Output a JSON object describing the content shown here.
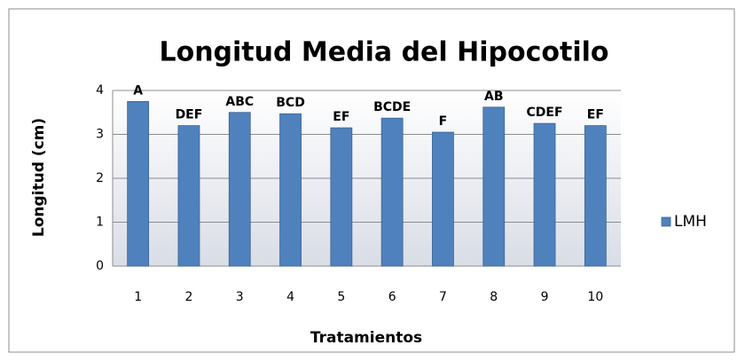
{
  "chart_data": {
    "type": "bar",
    "title": "Longitud Media del Hipocotilo",
    "y_label": "Longitud (cm)",
    "x_label": "Tratamientos",
    "categories": [
      "1",
      "2",
      "3",
      "4",
      "5",
      "6",
      "7",
      "8",
      "9",
      "10"
    ],
    "series": [
      {
        "name": "LMH",
        "color": "#4f81bd",
        "values": [
          3.75,
          3.2,
          3.5,
          3.47,
          3.15,
          3.37,
          3.05,
          3.62,
          3.25,
          3.2
        ]
      }
    ],
    "annotations": [
      "A",
      "DEF",
      "ABC",
      "BCD",
      "EF",
      "BCDE",
      "F",
      "AB",
      "CDEF",
      "EF"
    ],
    "ylim": [
      0,
      4
    ],
    "yticks": [
      0,
      1,
      2,
      3,
      4
    ],
    "grid": true,
    "legend": "right"
  }
}
